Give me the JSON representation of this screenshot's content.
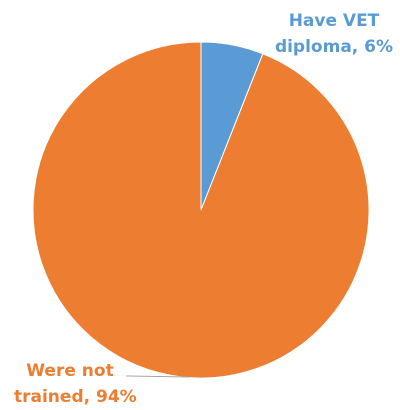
{
  "chart_data": {
    "type": "pie",
    "title": "",
    "slices": [
      {
        "label_lines": [
          "Have VET",
          "diploma, 6%"
        ],
        "value": 6,
        "color": "#5b9bd5"
      },
      {
        "label_lines": [
          "Were not",
          "trained, 94%"
        ],
        "value": 94,
        "color": "#ed7d31"
      }
    ],
    "start_angle_deg": 0,
    "direction": "clockwise",
    "legend": "none",
    "data_labels": "outside"
  }
}
